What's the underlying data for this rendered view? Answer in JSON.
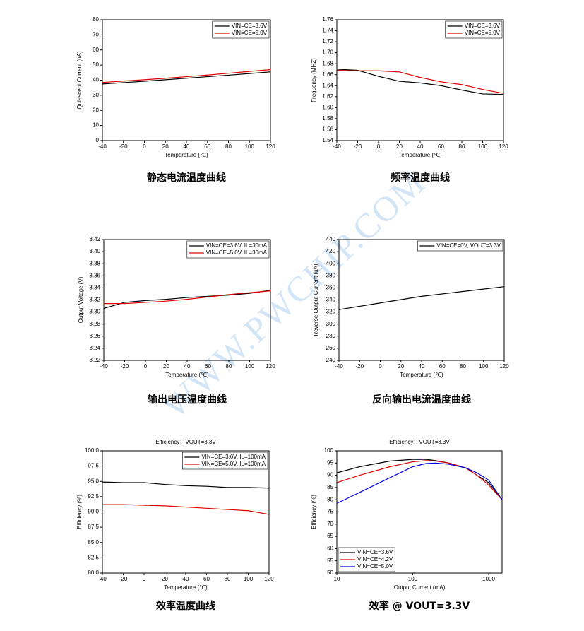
{
  "watermark": "WWW.PWCHIP.COM",
  "chart_data": [
    {
      "type": "line",
      "caption": "静态电流温度曲线",
      "x_label": "Temperature (℃)",
      "y_label": "Quiescent Current (uA)",
      "x": [
        -40,
        -20,
        0,
        20,
        40,
        60,
        80,
        100,
        120
      ],
      "xlim": [
        -40,
        120
      ],
      "xticks": [
        -40,
        -20,
        0,
        20,
        40,
        60,
        80,
        100,
        120
      ],
      "ylim": [
        0,
        80
      ],
      "yticks": [
        0,
        10,
        20,
        30,
        40,
        50,
        60,
        70,
        80
      ],
      "legend": "upper right",
      "series": [
        {
          "name": "VIN=CE=3.6V",
          "color": "#000000",
          "values": [
            37.5,
            38.4,
            39.3,
            40.3,
            41.3,
            42.3,
            43.3,
            44.4,
            45.5
          ]
        },
        {
          "name": "VIN=CE=5.0V",
          "color": "#e00000",
          "values": [
            38.5,
            39.4,
            40.3,
            41.3,
            42.3,
            43.4,
            44.6,
            45.8,
            47.0
          ]
        }
      ]
    },
    {
      "type": "line",
      "caption": "频率温度曲线",
      "x_label": "Temperature (℃)",
      "y_label": "Frequency (MHZ)",
      "x": [
        -40,
        -20,
        0,
        20,
        40,
        60,
        80,
        100,
        120
      ],
      "xlim": [
        -40,
        120
      ],
      "xticks": [
        -40,
        -20,
        0,
        20,
        40,
        60,
        80,
        100,
        120
      ],
      "ylim": [
        1.54,
        1.76
      ],
      "yticks": [
        1.54,
        1.56,
        1.58,
        {
          "value": 1.6,
          "label": "1.60"
        },
        1.62,
        1.64,
        1.66,
        1.68,
        {
          "value": 1.7,
          "label": "1.70"
        },
        1.72,
        1.74,
        1.76
      ],
      "legend": "upper right",
      "series": [
        {
          "name": "VIN=CE=3.6V",
          "color": "#000000",
          "values": [
            1.67,
            1.668,
            1.657,
            1.648,
            1.645,
            1.64,
            1.632,
            1.625,
            1.624
          ]
        },
        {
          "name": "VIN=CE=5.0V",
          "color": "#e00000",
          "values": [
            1.668,
            1.667,
            1.667,
            1.665,
            1.655,
            1.647,
            1.642,
            1.633,
            1.626
          ]
        }
      ]
    },
    {
      "type": "line",
      "caption": "输出电压温度曲线",
      "x_label": "Temperature (℃)",
      "y_label": "Output Voltage (V)",
      "x": [
        -40,
        -20,
        0,
        20,
        40,
        60,
        80,
        100,
        120
      ],
      "xlim": [
        -40,
        120
      ],
      "xticks": [
        -40,
        -20,
        0,
        20,
        40,
        60,
        80,
        100,
        120
      ],
      "ylim": [
        3.22,
        3.42
      ],
      "yticks": [
        3.22,
        3.24,
        3.26,
        3.28,
        {
          "value": 3.3,
          "label": "3.30"
        },
        3.32,
        3.34,
        3.36,
        3.38,
        {
          "value": 3.4,
          "label": "3.40"
        },
        3.42
      ],
      "legend": "upper right",
      "series": [
        {
          "name": "VIN=CE=3.6V, IL=30mA",
          "color": "#000000",
          "values": [
            3.306,
            3.316,
            3.319,
            3.321,
            3.324,
            3.326,
            3.328,
            3.331,
            3.336
          ]
        },
        {
          "name": "VIN=CE=5.0V, IL=30mA",
          "color": "#e00000",
          "values": [
            3.314,
            3.314,
            3.316,
            3.318,
            3.321,
            3.325,
            3.329,
            3.332,
            3.335
          ]
        }
      ]
    },
    {
      "type": "line",
      "caption": "反向输出电流温度曲线",
      "x_label": "Temperature (℃)",
      "y_label": "Reverse Output Current (uA)",
      "x": [
        -40,
        0,
        40,
        80,
        120
      ],
      "xlim": [
        -40,
        120
      ],
      "xticks": [
        -40,
        -20,
        0,
        20,
        40,
        60,
        80,
        100,
        120
      ],
      "ylim": [
        240,
        440
      ],
      "yticks": [
        240,
        260,
        280,
        300,
        320,
        340,
        360,
        380,
        400,
        420,
        440
      ],
      "legend": "upper right",
      "series": [
        {
          "name": "VIN=CE=0V, VOUT=3.3V",
          "color": "#000000",
          "values": [
            324,
            335,
            346,
            354,
            362
          ]
        }
      ]
    },
    {
      "type": "line",
      "title": "Efficiency：VOUT=3.3V",
      "caption": "效率温度曲线",
      "x_label": "Temperature (℃)",
      "y_label": "Efficiency (%)",
      "x": [
        -40,
        -20,
        0,
        20,
        40,
        60,
        80,
        100,
        120
      ],
      "xlim": [
        -40,
        120
      ],
      "xticks": [
        -40,
        -20,
        0,
        20,
        40,
        60,
        80,
        100,
        120
      ],
      "ylim": [
        80,
        100
      ],
      "yticks": [
        {
          "value": 80,
          "label": "80.0"
        },
        82.5,
        {
          "value": 85,
          "label": "85.0"
        },
        87.5,
        {
          "value": 90,
          "label": "90.0"
        },
        92.5,
        {
          "value": 95,
          "label": "95.0"
        },
        97.5,
        {
          "value": 100,
          "label": "100.0"
        }
      ],
      "legend": "upper right",
      "series": [
        {
          "name": "VIN=CE=3.6V, IL=100mA",
          "color": "#000000",
          "values": [
            94.9,
            94.8,
            94.8,
            94.5,
            94.3,
            94.2,
            94.0,
            94.0,
            93.9
          ]
        },
        {
          "name": "VIN=CE=5.0V, IL=100mA",
          "color": "#e00000",
          "values": [
            91.2,
            91.2,
            91.1,
            91.0,
            90.8,
            90.6,
            90.4,
            90.2,
            89.6
          ]
        }
      ]
    },
    {
      "type": "line",
      "title": "Efficiency：VOUT=3.3V",
      "caption": "效率  @ VOUT=3.3V",
      "x_label": "Output Current (mA)",
      "y_label": "Efficiency (%)",
      "x": [
        10,
        20,
        50,
        100,
        150,
        200,
        300,
        500,
        700,
        1000,
        1500
      ],
      "xlim": [
        10,
        1500
      ],
      "xticks": [
        10,
        100,
        1000
      ],
      "xlog": true,
      "ylim": [
        50,
        100
      ],
      "yticks": [
        50,
        55,
        60,
        65,
        70,
        75,
        80,
        85,
        90,
        95,
        100
      ],
      "legend": "lower left",
      "series": [
        {
          "name": "VIN=CE=3.6V",
          "color": "#000000",
          "values": [
            91,
            93.5,
            95.8,
            96.5,
            96.5,
            96,
            95,
            93,
            90,
            87,
            80
          ]
        },
        {
          "name": "VIN=CE=4.2V",
          "color": "#e00000",
          "values": [
            87,
            90,
            93.5,
            95.5,
            96,
            95.8,
            95,
            93,
            90,
            86,
            80
          ]
        },
        {
          "name": "VIN=CE=5.0V",
          "color": "#0000e0",
          "values": [
            78.5,
            83,
            89,
            93.5,
            94.8,
            95,
            94.5,
            93,
            91,
            88,
            80
          ]
        }
      ]
    }
  ]
}
